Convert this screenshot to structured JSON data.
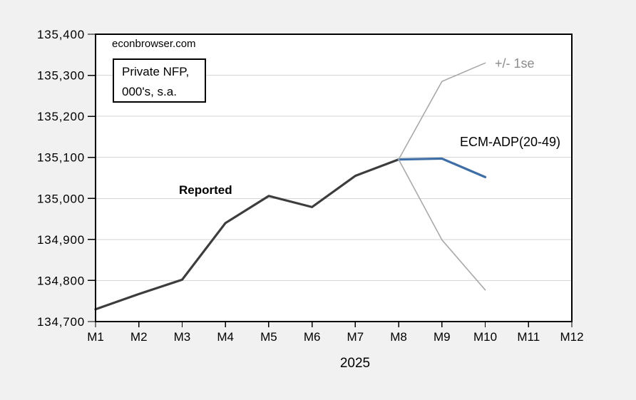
{
  "style": {
    "background": "#f1f1f1",
    "plot_background": "#ffffff",
    "grid_color": "#d6d6d6",
    "frame_color": "#000000",
    "tick_label_color": "#000000",
    "se_label_color": "#8c8c8c"
  },
  "annotations": {
    "watermark": "econbrowser.com",
    "series_box": {
      "line1": "Private NFP,",
      "line2": "000's, s.a."
    },
    "reported_label": "Reported",
    "forecast_label": "ECM-ADP(20-49)",
    "se_label": "+/- 1se"
  },
  "chart_data": {
    "type": "line",
    "title": "",
    "xlabel": "2025",
    "ylabel": "",
    "categories": [
      "M1",
      "M2",
      "M3",
      "M4",
      "M5",
      "M6",
      "M7",
      "M8",
      "M9",
      "M10",
      "M11",
      "M12"
    ],
    "ylim": [
      134700,
      135400
    ],
    "ytick_interval": 100,
    "grid": "horizontal-only",
    "legend_position": "inline-text-labels",
    "series": [
      {
        "name": "Reported",
        "color": "#3d3d3d",
        "width": 3.2,
        "x": [
          "M1",
          "M2",
          "M3",
          "M4",
          "M5",
          "M6",
          "M7",
          "M8"
        ],
        "values": [
          134730,
          134767,
          134802,
          134940,
          135006,
          134979,
          135055,
          135095
        ]
      },
      {
        "name": "ECM-ADP(20-49)",
        "color": "#3e6ea5",
        "width": 3.2,
        "x": [
          "M8",
          "M9",
          "M10"
        ],
        "values": [
          135095,
          135097,
          135052
        ]
      },
      {
        "name": "plus-1se",
        "color": "#a9a9a9",
        "width": 1.6,
        "x": [
          "M8",
          "M9",
          "M10"
        ],
        "values": [
          135095,
          135285,
          135330
        ]
      },
      {
        "name": "minus-1se",
        "color": "#a9a9a9",
        "width": 1.6,
        "x": [
          "M8",
          "M9",
          "M10"
        ],
        "values": [
          135095,
          134899,
          134777
        ]
      }
    ]
  }
}
